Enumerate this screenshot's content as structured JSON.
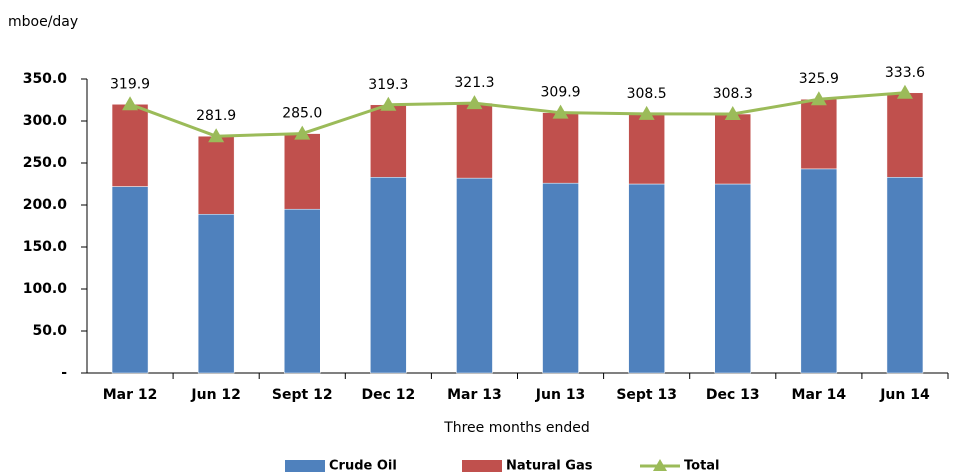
{
  "chart_data": {
    "type": "bar",
    "stacked": true,
    "y_label": "mboe/day",
    "x_label": "Three months ended",
    "categories": [
      "Mar 12",
      "Jun 12",
      "Sept 12",
      "Dec 12",
      "Mar 13",
      "Jun 13",
      "Sept 13",
      "Dec 13",
      "Mar 14",
      "Jun 14"
    ],
    "series": [
      {
        "name": "Crude Oil",
        "color": "#4f81bd",
        "values": [
          222,
          189,
          195,
          233,
          232,
          226,
          225,
          225,
          243,
          233
        ]
      },
      {
        "name": "Natural Gas",
        "color": "#c0504d",
        "values": [
          97.9,
          92.9,
          90,
          86.3,
          89.3,
          83.9,
          83.5,
          83.3,
          82.9,
          100.6
        ]
      },
      {
        "name": "Total",
        "type": "line",
        "color": "#9bbb59",
        "values": [
          319.9,
          281.9,
          285,
          319.3,
          321.3,
          309.9,
          308.5,
          308.3,
          325.9,
          333.6
        ],
        "value_labels": [
          "319.9",
          "281.9",
          "285.0",
          "319.3",
          "321.3",
          "309.9",
          "308.5",
          "308.3",
          "325.9",
          "333.6"
        ]
      }
    ],
    "ylim": [
      0,
      350
    ],
    "yticks": [
      {
        "value": 0,
        "label": "-"
      },
      {
        "value": 50,
        "label": "50.0"
      },
      {
        "value": 100,
        "label": "100.0"
      },
      {
        "value": 150,
        "label": "150.0"
      },
      {
        "value": 200,
        "label": "200.0"
      },
      {
        "value": 250,
        "label": "250.0"
      },
      {
        "value": 300,
        "label": "300.0"
      },
      {
        "value": 350,
        "label": "350.0"
      }
    ],
    "grid": false,
    "legend": "bottom"
  }
}
